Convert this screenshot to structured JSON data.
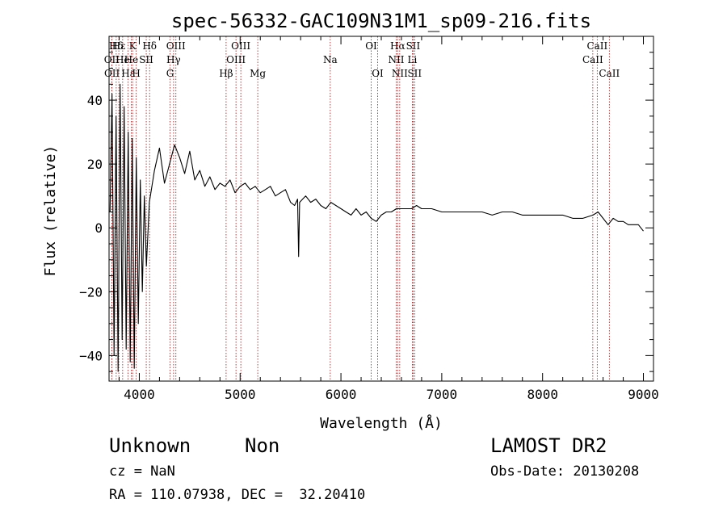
{
  "chart_data": {
    "type": "line",
    "title": "spec-56332-GAC109N31M1_sp09-216.fits",
    "xlabel": "Wavelength (Å)",
    "ylabel": "Flux (relative)",
    "xlim": [
      3700,
      9100
    ],
    "ylim": [
      -48,
      60
    ],
    "x_ticks": [
      4000,
      5000,
      6000,
      7000,
      8000,
      9000
    ],
    "y_ticks": [
      -40,
      -20,
      0,
      20,
      40
    ],
    "x_tick_labels": [
      "4000",
      "5000",
      "6000",
      "7000",
      "8000",
      "9000"
    ],
    "y_tick_labels": [
      "−40",
      "−20",
      "0",
      "20",
      "40"
    ],
    "grid": false,
    "series": [
      {
        "x": [
          3710,
          3730,
          3750,
          3770,
          3790,
          3810,
          3830,
          3850,
          3870,
          3890,
          3910,
          3930,
          3950,
          3970,
          3990,
          4010,
          4030,
          4050,
          4070,
          4100,
          4150,
          4200,
          4250,
          4300,
          4350,
          4400,
          4450,
          4500,
          4550,
          4600,
          4650,
          4700,
          4750,
          4800,
          4850,
          4900,
          4950,
          5000,
          5050,
          5100,
          5150,
          5200,
          5250,
          5300,
          5350,
          5400,
          5450,
          5500,
          5540,
          5570,
          5580,
          5590,
          5620,
          5650,
          5700,
          5750,
          5800,
          5850,
          5900,
          5950,
          6000,
          6050,
          6100,
          6150,
          6200,
          6250,
          6300,
          6350,
          6400,
          6450,
          6500,
          6550,
          6600,
          6650,
          6700,
          6750,
          6800,
          6900,
          7000,
          7100,
          7200,
          7300,
          7400,
          7500,
          7600,
          7700,
          7800,
          7900,
          8000,
          8100,
          8200,
          8300,
          8400,
          8500,
          8550,
          8600,
          8650,
          8700,
          8750,
          8800,
          8850,
          8900,
          8950,
          9000
        ],
        "y": [
          5,
          42,
          -40,
          35,
          -45,
          45,
          -35,
          38,
          -38,
          30,
          -42,
          28,
          -44,
          22,
          -30,
          15,
          -20,
          10,
          -12,
          8,
          18,
          25,
          14,
          20,
          26,
          22,
          17,
          24,
          15,
          18,
          13,
          16,
          12,
          14,
          13,
          15,
          11,
          13,
          14,
          12,
          13,
          11,
          12,
          13,
          10,
          11,
          12,
          8,
          7,
          9,
          -9,
          8,
          9,
          10,
          8,
          9,
          7,
          6,
          8,
          7,
          6,
          5,
          4,
          6,
          4,
          5,
          3,
          2,
          4,
          5,
          5,
          6,
          6,
          6,
          6,
          7,
          6,
          6,
          5,
          5,
          5,
          5,
          5,
          4,
          5,
          5,
          4,
          4,
          4,
          4,
          4,
          3,
          3,
          4,
          5,
          3,
          1,
          3,
          2,
          2,
          1,
          1,
          1,
          -1
        ]
      }
    ],
    "lines": [
      {
        "label": "Hδ",
        "wl": 3771,
        "row": 0
      },
      {
        "label": "OII",
        "wl": 3727,
        "row": 1
      },
      {
        "label": "OII",
        "wl": 3729,
        "row": 2
      },
      {
        "label": "Hε",
        "wl": 3797,
        "row": 0
      },
      {
        "label": "He",
        "wl": 3835,
        "row": 1
      },
      {
        "label": "Hε",
        "wl": 3889,
        "row": 2
      },
      {
        "label": "K",
        "wl": 3934,
        "row": 0
      },
      {
        "label": "H",
        "wl": 3969,
        "row": 2
      },
      {
        "label": "He",
        "wl": 3920,
        "row": 1
      },
      {
        "label": "SII",
        "wl": 4069,
        "row": 1
      },
      {
        "label": "Hδ",
        "wl": 4102,
        "row": 0
      },
      {
        "label": "G",
        "wl": 4305,
        "row": 2
      },
      {
        "label": "OIII",
        "wl": 4363,
        "row": 0
      },
      {
        "label": "Hγ",
        "wl": 4340,
        "row": 1
      },
      {
        "label": "Hβ",
        "wl": 4861,
        "row": 2
      },
      {
        "label": "OIII",
        "wl": 5007,
        "row": 0
      },
      {
        "label": "OIII",
        "wl": 4959,
        "row": 1
      },
      {
        "label": "Mg",
        "wl": 5175,
        "row": 2
      },
      {
        "label": "Na",
        "wl": 5894,
        "row": 1
      },
      {
        "label": "OI",
        "wl": 6300,
        "row": 0
      },
      {
        "label": "OI",
        "wl": 6364,
        "row": 2
      },
      {
        "label": "Hα",
        "wl": 6563,
        "row": 0
      },
      {
        "label": "NII",
        "wl": 6548,
        "row": 1
      },
      {
        "label": "NII",
        "wl": 6583,
        "row": 2
      },
      {
        "label": "SII",
        "wl": 6716,
        "row": 0
      },
      {
        "label": "Li",
        "wl": 6708,
        "row": 1
      },
      {
        "label": "SII",
        "wl": 6731,
        "row": 2
      },
      {
        "label": "CaII",
        "wl": 8542,
        "row": 0
      },
      {
        "label": "CaII",
        "wl": 8498,
        "row": 1
      },
      {
        "label": "CaII",
        "wl": 8662,
        "row": 2
      }
    ]
  },
  "info": {
    "class": "Unknown",
    "subclass": "Non",
    "cz": "cz = NaN",
    "coords": "RA = 110.07938, DEC =  32.20410",
    "survey": "LAMOST DR2",
    "obs_date": "Obs-Date: 20130208"
  }
}
